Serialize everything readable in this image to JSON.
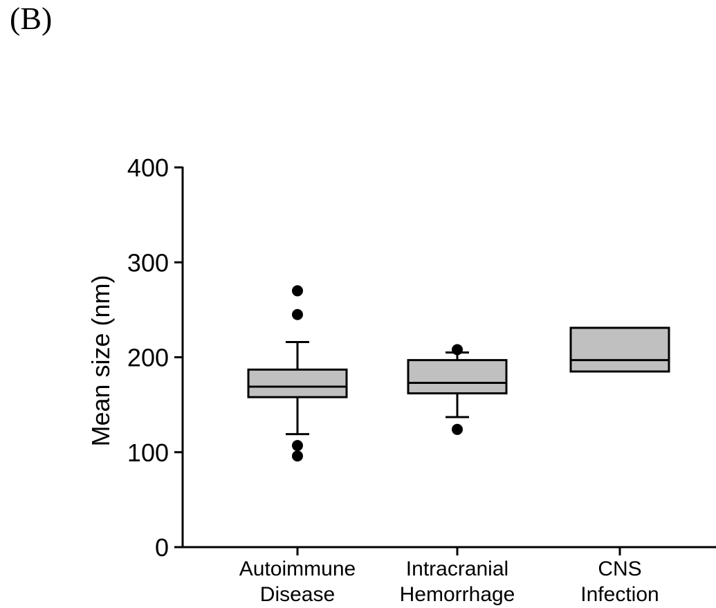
{
  "panel_label": "(B)",
  "colors": {
    "box_fill": "#c0c0c0",
    "stroke": "#000000",
    "outlier": "#000000",
    "background": "#ffffff"
  },
  "chart_data": {
    "type": "box",
    "ylabel": "Mean size (nm)",
    "xlabel": "",
    "title": "",
    "ylim": [
      0,
      400
    ],
    "yticks": [
      0,
      100,
      200,
      300,
      400
    ],
    "grid": false,
    "legend": "none",
    "categories": [
      {
        "lines": [
          "Autoimmune",
          "Disease"
        ]
      },
      {
        "lines": [
          "Intracranial",
          "Hemorrhage"
        ]
      },
      {
        "lines": [
          "CNS",
          "Infection"
        ]
      }
    ],
    "boxes": [
      {
        "q1": 158,
        "median": 169,
        "q3": 187,
        "whisker_low": 119,
        "whisker_high": 216,
        "outliers": [
          270,
          245,
          107,
          96
        ]
      },
      {
        "q1": 162,
        "median": 173,
        "q3": 197,
        "whisker_low": 137,
        "whisker_high": 205,
        "outliers": [
          208,
          124
        ]
      },
      {
        "q1": 185,
        "median": 197,
        "q3": 231,
        "whisker_low": null,
        "whisker_high": null,
        "outliers": []
      }
    ]
  }
}
